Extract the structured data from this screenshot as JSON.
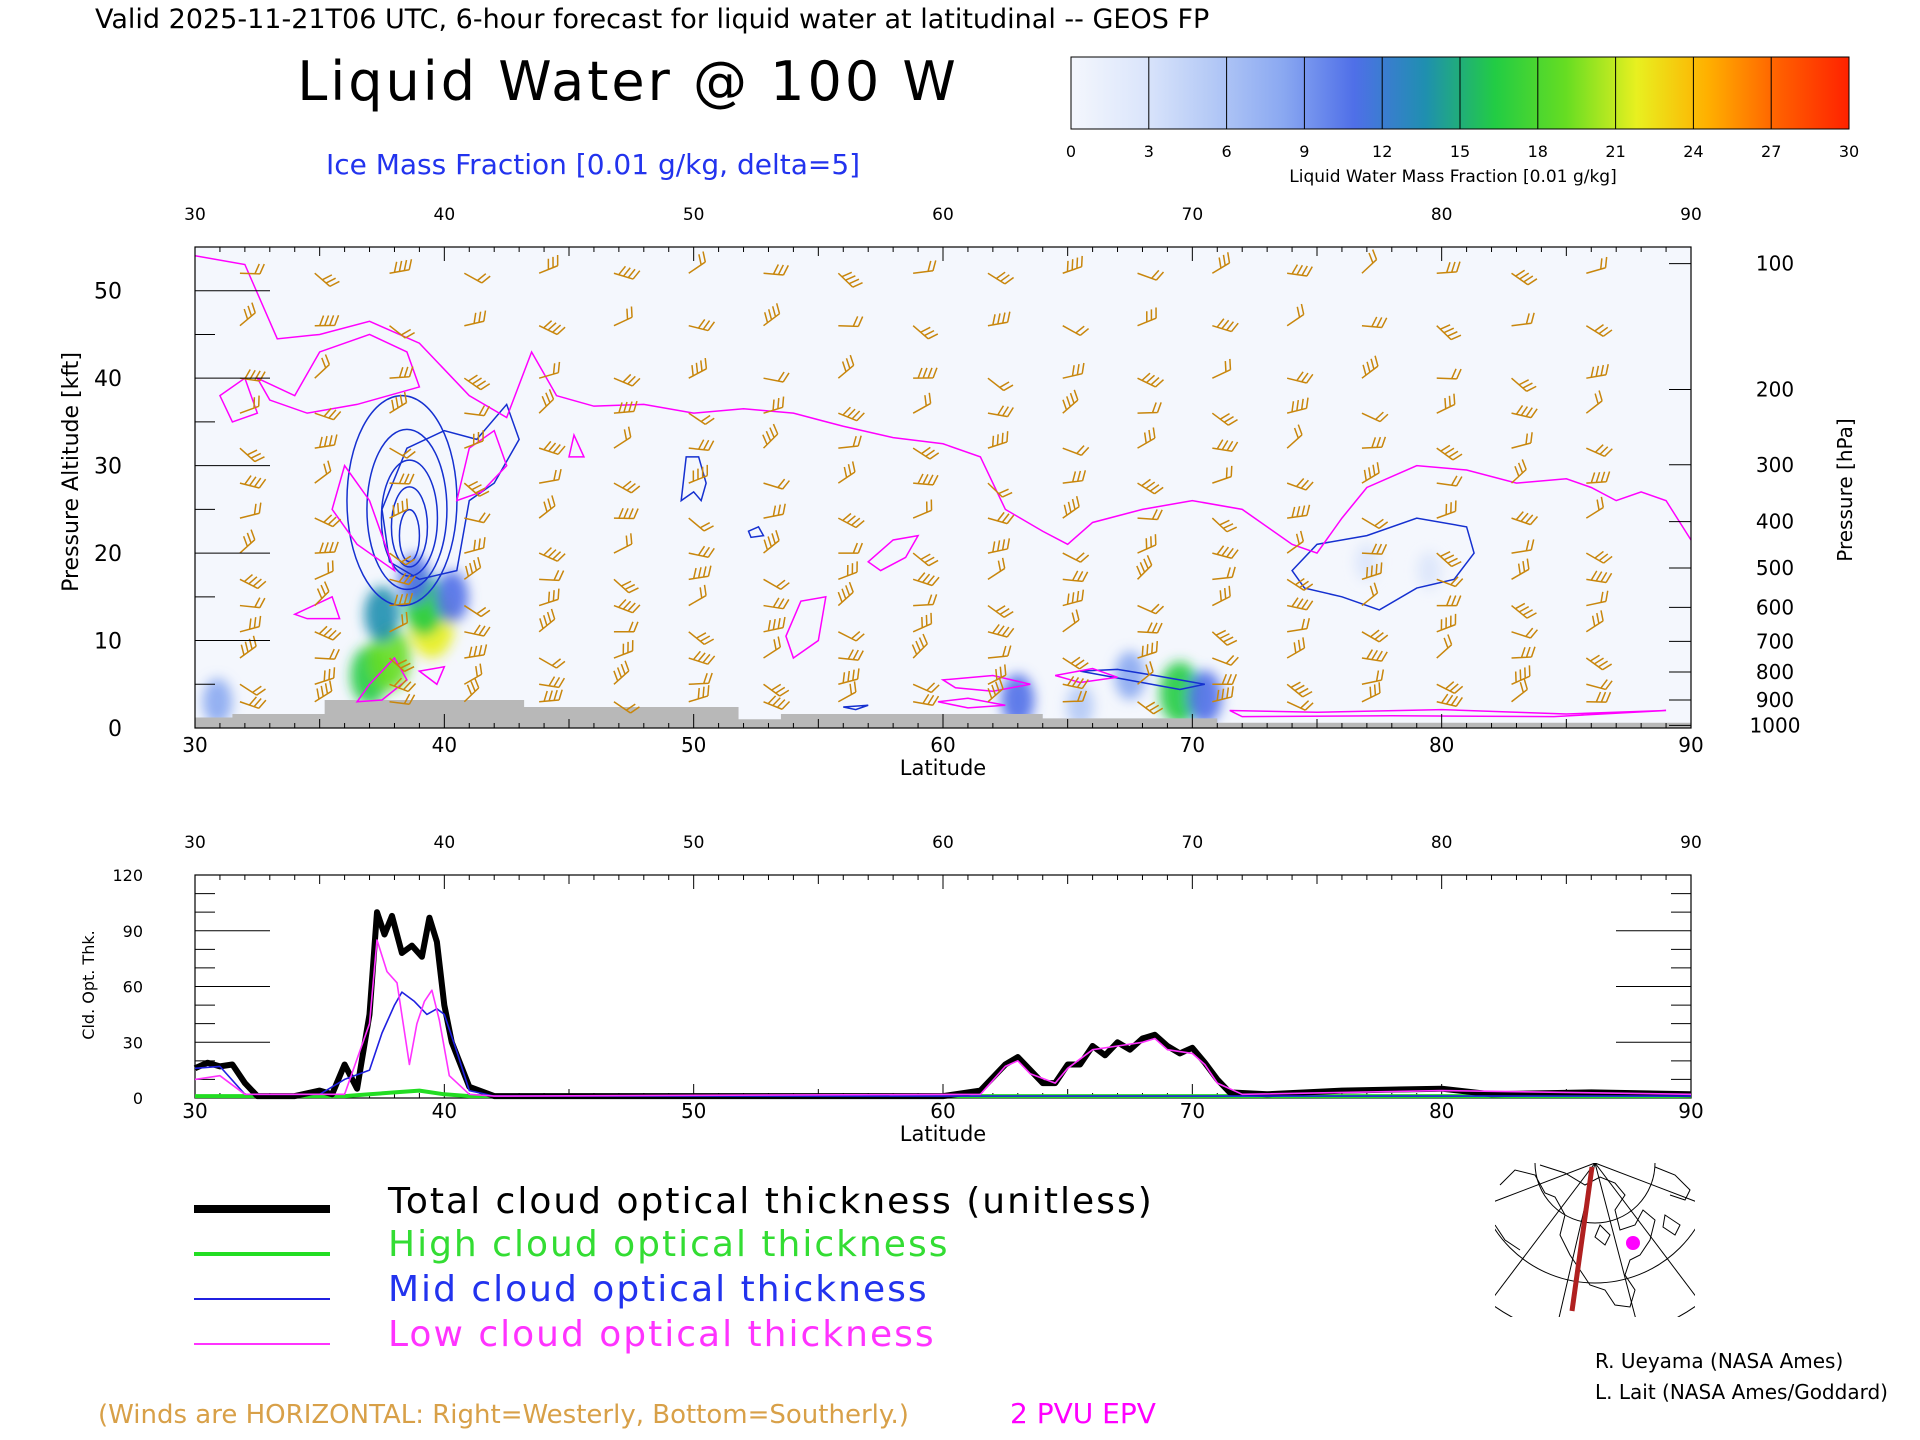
{
  "header": {
    "valid_line": "Valid 2025-11-21T06 UTC, 6-hour forecast for liquid water at latitudinal -- GEOS FP",
    "title": "Liquid Water @ 100 W",
    "contour_label": "Ice Mass Fraction [0.01 g/kg, delta=5]"
  },
  "colorbar": {
    "ticks": [
      "0",
      "3",
      "6",
      "9",
      "12",
      "15",
      "18",
      "21",
      "24",
      "27",
      "30"
    ],
    "label": "Liquid Water Mass Fraction [0.01 g/kg]",
    "colors": [
      "#f4f7fd",
      "#dce6fb",
      "#b4c9f6",
      "#8aa8f1",
      "#4f6fe8",
      "#1f8fb0",
      "#22cc44",
      "#66dd22",
      "#e8f020",
      "#ffb000",
      "#ff6000",
      "#ff2200"
    ]
  },
  "colors": {
    "wind_barbs": "#c8860c",
    "epv": "#ff00ff",
    "ice": "#1530d0",
    "ground": "#b8b8b8",
    "total": "#000000",
    "high": "#22dd22",
    "mid": "#2020e0",
    "low": "#ff33ff"
  },
  "chart_data": [
    {
      "type": "heatmap",
      "title": "Liquid Water @ 100 W",
      "xlabel": "Latitude",
      "ylabel": "Pressure Altitude [kft]",
      "y2label": "Pressure [hPa]",
      "xlim": [
        30,
        90
      ],
      "ylim": [
        0,
        55
      ],
      "x_ticks": [
        "30",
        "40",
        "50",
        "60",
        "70",
        "80",
        "90"
      ],
      "y_ticks": [
        "0",
        "10",
        "20",
        "30",
        "40",
        "50"
      ],
      "pressure_ticks": [
        {
          "label": "100",
          "kft": 53.1
        },
        {
          "label": "200",
          "kft": 38.7
        },
        {
          "label": "300",
          "kft": 30.1
        },
        {
          "label": "400",
          "kft": 23.6
        },
        {
          "label": "500",
          "kft": 18.3
        },
        {
          "label": "600",
          "kft": 13.8
        },
        {
          "label": "700",
          "kft": 9.9
        },
        {
          "label": "800",
          "kft": 6.4
        },
        {
          "label": "900",
          "kft": 3.2
        },
        {
          "label": "1000",
          "kft": 0.3
        }
      ],
      "liquid_water_cells": [
        {
          "lat": 37.0,
          "kft": 6.0,
          "value": 15
        },
        {
          "lat": 37.8,
          "kft": 8.0,
          "value": 18
        },
        {
          "lat": 37.5,
          "kft": 13.0,
          "value": 13
        },
        {
          "lat": 39.5,
          "kft": 12.0,
          "value": 21
        },
        {
          "lat": 39.2,
          "kft": 14.0,
          "value": 16
        },
        {
          "lat": 40.3,
          "kft": 15.0,
          "value": 11
        },
        {
          "lat": 38.8,
          "kft": 17.0,
          "value": 10
        },
        {
          "lat": 30.9,
          "kft": 3.0,
          "value": 8
        },
        {
          "lat": 63.0,
          "kft": 3.2,
          "value": 11
        },
        {
          "lat": 67.5,
          "kft": 6.0,
          "value": 9
        },
        {
          "lat": 69.5,
          "kft": 4.0,
          "value": 17
        },
        {
          "lat": 70.5,
          "kft": 3.5,
          "value": 12
        },
        {
          "lat": 65.5,
          "kft": 2.5,
          "value": 6
        },
        {
          "lat": 77.0,
          "kft": 19.0,
          "value": 3
        },
        {
          "lat": 79.5,
          "kft": 18.0,
          "value": 3
        }
      ],
      "epv_2pvu": [
        [
          30,
          54
        ],
        [
          32,
          53
        ],
        [
          33.3,
          44.5
        ],
        [
          35,
          45
        ],
        [
          37,
          46.5
        ],
        [
          39,
          44
        ],
        [
          41,
          38
        ],
        [
          42.5,
          35.5
        ],
        [
          43.5,
          43
        ],
        [
          44.5,
          38
        ],
        [
          46,
          36.8
        ],
        [
          48,
          37
        ],
        [
          50,
          36
        ],
        [
          52,
          36.5
        ],
        [
          54,
          36
        ],
        [
          56,
          34.5
        ],
        [
          58,
          33.2
        ],
        [
          60,
          32.5
        ],
        [
          61.5,
          31
        ],
        [
          62.5,
          25
        ],
        [
          64,
          22.5
        ],
        [
          65,
          21
        ],
        [
          66,
          23.5
        ],
        [
          68,
          25
        ],
        [
          70,
          26
        ],
        [
          72,
          25
        ],
        [
          74,
          21
        ],
        [
          75,
          20
        ],
        [
          76,
          24
        ],
        [
          77,
          27.5
        ],
        [
          79,
          30
        ],
        [
          81,
          29.5
        ],
        [
          83,
          28
        ],
        [
          85,
          28.5
        ],
        [
          86,
          27.5
        ],
        [
          87,
          26
        ],
        [
          88,
          27
        ],
        [
          89,
          26
        ],
        [
          90,
          21.5
        ]
      ],
      "wind_barb_lats": [
        31,
        34,
        37,
        40,
        43,
        46,
        49,
        52,
        55,
        58,
        61,
        64,
        67,
        70,
        73,
        76,
        79,
        82,
        85
      ]
    },
    {
      "type": "line",
      "xlabel": "Latitude",
      "ylabel": "Cld. Opt. Thk.",
      "xlim": [
        30,
        90
      ],
      "ylim": [
        0,
        120
      ],
      "x_ticks": [
        "30",
        "40",
        "50",
        "60",
        "70",
        "80",
        "90"
      ],
      "y_ticks": [
        "0",
        "30",
        "60",
        "90",
        "120"
      ],
      "series": [
        {
          "name": "Total cloud optical thickness (unitless)",
          "key": "total",
          "values": [
            [
              30,
              16
            ],
            [
              30.5,
              19
            ],
            [
              31,
              17
            ],
            [
              31.5,
              18
            ],
            [
              32,
              8
            ],
            [
              32.5,
              1
            ],
            [
              34,
              1
            ],
            [
              35,
              4
            ],
            [
              35.5,
              2
            ],
            [
              36,
              18
            ],
            [
              36.5,
              5
            ],
            [
              37,
              45
            ],
            [
              37.3,
              100
            ],
            [
              37.6,
              88
            ],
            [
              37.9,
              98
            ],
            [
              38.3,
              78
            ],
            [
              38.7,
              82
            ],
            [
              39.1,
              76
            ],
            [
              39.4,
              97
            ],
            [
              39.7,
              84
            ],
            [
              40,
              50
            ],
            [
              40.3,
              30
            ],
            [
              41,
              6
            ],
            [
              42,
              1
            ],
            [
              50,
              1
            ],
            [
              55,
              1
            ],
            [
              60,
              1
            ],
            [
              61.5,
              4
            ],
            [
              62.5,
              18
            ],
            [
              63,
              22
            ],
            [
              63.5,
              15
            ],
            [
              64,
              8
            ],
            [
              64.5,
              8
            ],
            [
              65,
              18
            ],
            [
              65.5,
              18
            ],
            [
              66,
              28
            ],
            [
              66.5,
              23
            ],
            [
              67,
              30
            ],
            [
              67.5,
              26
            ],
            [
              68,
              32
            ],
            [
              68.5,
              34
            ],
            [
              69,
              28
            ],
            [
              69.5,
              24
            ],
            [
              70,
              27
            ],
            [
              70.5,
              19
            ],
            [
              71,
              10
            ],
            [
              71.5,
              3
            ],
            [
              73,
              2
            ],
            [
              76,
              4
            ],
            [
              80,
              5
            ],
            [
              82,
              2
            ],
            [
              86,
              3
            ],
            [
              90,
              2
            ]
          ]
        },
        {
          "name": "High cloud optical thickness",
          "key": "high",
          "values": [
            [
              30,
              1
            ],
            [
              36,
              1
            ],
            [
              37,
              2
            ],
            [
              38,
              3
            ],
            [
              39,
              4
            ],
            [
              40,
              2
            ],
            [
              41,
              1
            ],
            [
              60,
              1
            ],
            [
              90,
              1
            ]
          ]
        },
        {
          "name": "Mid cloud optical thickness",
          "key": "mid",
          "values": [
            [
              30,
              16
            ],
            [
              31,
              17
            ],
            [
              32,
              2
            ],
            [
              35,
              2
            ],
            [
              36,
              10
            ],
            [
              37,
              15
            ],
            [
              37.5,
              35
            ],
            [
              38,
              50
            ],
            [
              38.3,
              57
            ],
            [
              38.8,
              52
            ],
            [
              39.3,
              45
            ],
            [
              39.7,
              48
            ],
            [
              40,
              45
            ],
            [
              40.5,
              25
            ],
            [
              41,
              4
            ],
            [
              42,
              1
            ],
            [
              90,
              1
            ]
          ]
        },
        {
          "name": "Low cloud optical thickness",
          "key": "low",
          "values": [
            [
              30,
              10
            ],
            [
              31,
              12
            ],
            [
              32,
              2
            ],
            [
              36,
              2
            ],
            [
              37,
              40
            ],
            [
              37.3,
              85
            ],
            [
              37.7,
              68
            ],
            [
              38.1,
              62
            ],
            [
              38.6,
              18
            ],
            [
              38.9,
              40
            ],
            [
              39.2,
              52
            ],
            [
              39.5,
              58
            ],
            [
              39.8,
              42
            ],
            [
              40.2,
              12
            ],
            [
              41,
              2
            ],
            [
              42,
              1
            ],
            [
              61.5,
              2
            ],
            [
              62.5,
              17
            ],
            [
              63,
              20
            ],
            [
              63.5,
              13
            ],
            [
              64.5,
              8
            ],
            [
              65,
              16
            ],
            [
              66,
              26
            ],
            [
              67,
              28
            ],
            [
              68,
              30
            ],
            [
              68.5,
              32
            ],
            [
              69,
              26
            ],
            [
              70,
              24
            ],
            [
              70.5,
              18
            ],
            [
              71,
              8
            ],
            [
              72,
              2
            ],
            [
              80,
              4
            ],
            [
              90,
              2
            ]
          ]
        }
      ]
    }
  ],
  "legend": {
    "total": "Total cloud optical thickness (unitless)",
    "high": "High cloud optical thickness",
    "mid": "Mid cloud optical thickness",
    "low": "Low cloud optical thickness"
  },
  "footer": {
    "winds_note": "(Winds are HORIZONTAL: Right=Westerly, Bottom=Southerly.)",
    "epv_label": "2 PVU EPV",
    "credit1": "R. Ueyama (NASA Ames)",
    "credit2": "L. Lait (NASA Ames/Goddard)"
  },
  "map_inset": {
    "icon": "north-america-polar-map-icon"
  }
}
